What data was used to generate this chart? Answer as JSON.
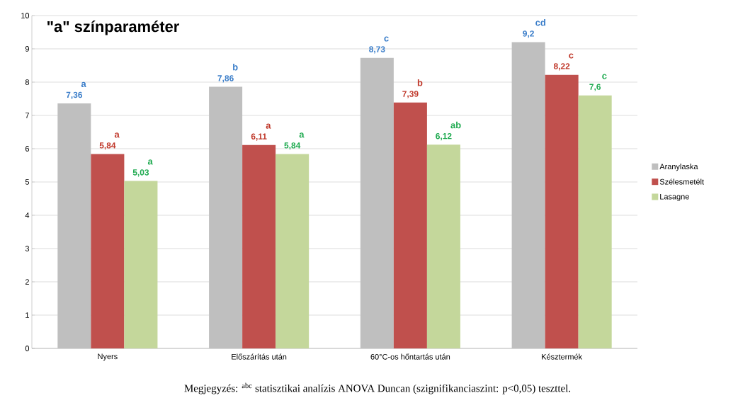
{
  "chart_data": {
    "type": "bar",
    "title": "\"a\" színparaméter",
    "categories": [
      "Nyers",
      "Előszárítás után",
      "60°C-os hőntartás után",
      "Késztermék"
    ],
    "series": [
      {
        "name": "Aranylaska",
        "color": "#bfbfbf",
        "values": [
          7.36,
          7.86,
          8.73,
          9.2
        ],
        "value_labels": [
          "7,36",
          "7,86",
          "8,73",
          "9,2"
        ]
      },
      {
        "name": "Szélesmetélt",
        "color": "#c0504d",
        "values": [
          5.84,
          6.11,
          7.39,
          8.22
        ],
        "value_labels": [
          "5,84",
          "6,11",
          "7,39",
          "8,22"
        ]
      },
      {
        "name": "Lasagne",
        "color": "#c4d79b",
        "values": [
          5.03,
          5.84,
          6.12,
          7.6
        ],
        "value_labels": [
          "5,03",
          "5,84",
          "6,12",
          "7,6"
        ]
      }
    ],
    "ylim": [
      0,
      10
    ],
    "yticks": [
      0,
      1,
      2,
      3,
      4,
      5,
      6,
      7,
      8,
      9,
      10
    ],
    "grid": "y",
    "legend": "right",
    "annotations": [
      "a",
      "a",
      "a",
      "b",
      "a",
      "a",
      "c",
      "b",
      "ab",
      "cd",
      "c",
      "c",
      "Megjegyzés: $^{abc}$ statisztikai analízis ANOVA Duncan (szignifikanciaszint: p<0,05) teszttel."
    ]
  }
}
